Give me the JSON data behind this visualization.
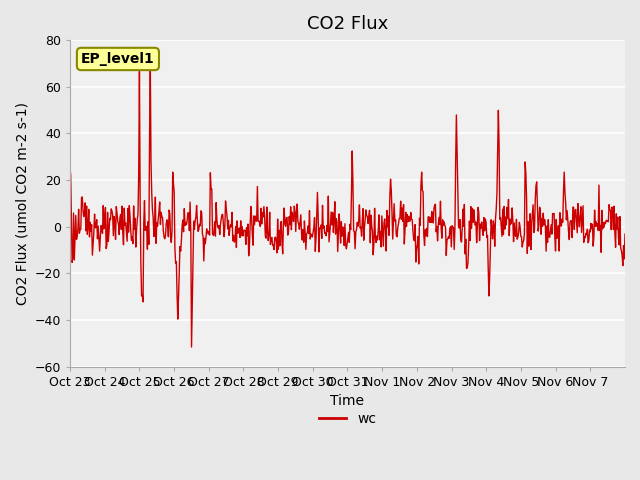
{
  "title": "CO2 Flux",
  "xlabel": "Time",
  "ylabel": "CO2 Flux (umol CO2 m-2 s-1)",
  "ylim": [
    -60,
    80
  ],
  "yticks": [
    -60,
    -40,
    -20,
    0,
    20,
    40,
    60,
    80
  ],
  "line_color": "#cc0000",
  "line_width": 1.0,
  "legend_label": "wc",
  "annotation_text": "EP_level1",
  "annotation_box_color": "#ffff99",
  "annotation_border_color": "#888800",
  "x_tick_labels": [
    "Oct 23",
    "Oct 24",
    "Oct 25",
    "Oct 26",
    "Oct 27",
    "Oct 28",
    "Oct 29",
    "Oct 30",
    "Oct 31",
    "Nov 1",
    "Nov 2",
    "Nov 3",
    "Nov 4",
    "Nov 5",
    "Nov 6",
    "Nov 7"
  ],
  "bg_color": "#e8e8e8",
  "plot_bg_color": "#f0f0f0",
  "grid_color": "#ffffff",
  "title_fontsize": 13,
  "axis_label_fontsize": 10,
  "tick_label_fontsize": 9
}
